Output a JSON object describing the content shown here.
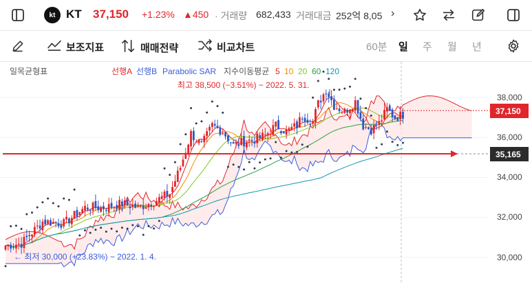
{
  "header": {
    "logo_text": "kt",
    "ticker": "KT",
    "price": "37,150",
    "change_pct": "+1.23%",
    "change_amt": "▲450",
    "volume_label": "· 거래량",
    "volume_value": "682,433",
    "amount_label": "거래대금",
    "amount_value": "252억 8,05",
    "chevron": "›"
  },
  "toolbar": {
    "indicators_label": "보조지표",
    "strategy_label": "매매전략",
    "compare_label": "비교차트",
    "periods": [
      "60분",
      "일",
      "주",
      "월",
      "년"
    ],
    "active_period": "일"
  },
  "chart": {
    "ichimoku_label": "일목균형표",
    "span_a_label": "선행A",
    "span_b_label": "선행B",
    "sar_label": "Parabolic SAR",
    "ma_label": "지수이동평균",
    "ma_periods": [
      "5",
      "10",
      "20",
      "60",
      "120"
    ],
    "high_annotation": "최고 38,500 (−3.51%) − 2022. 5. 31.",
    "low_annotation": "← 최저 30,000 (+23.83%) − 2022. 1. 4.",
    "current_price_tag": "37,150",
    "level_line_tag": "35,165",
    "y_ticks": [
      "38,000",
      "36,000",
      "34,000",
      "32,000",
      "30,000"
    ],
    "colors": {
      "up": "#e0262b",
      "down": "#2a56c6",
      "span_a": "#e0262b",
      "span_b": "#3b5bdb",
      "sar": "#2f3b52",
      "ma5": "#e0262b",
      "ma10": "#f08c00",
      "ma20": "#82c91e",
      "ma60": "#2f9e44",
      "ma120": "#1098ad"
    }
  }
}
